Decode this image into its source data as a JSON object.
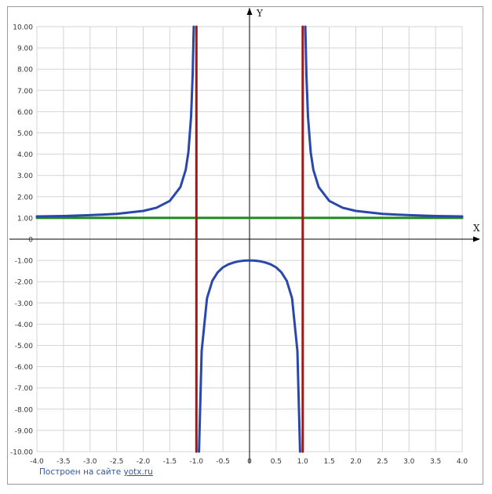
{
  "chart_data": {
    "type": "line",
    "xlabel": "X",
    "ylabel": "Y",
    "xlim": [
      -4,
      4
    ],
    "ylim": [
      -10,
      10
    ],
    "x_ticks": [
      "-4.0",
      "-3.5",
      "-3.0",
      "-2.5",
      "-2.0",
      "-1.5",
      "-1.0",
      "-0.5",
      "0",
      "0.5",
      "1.0",
      "1.5",
      "2.0",
      "2.5",
      "3.0",
      "3.5",
      "4.0"
    ],
    "y_ticks": [
      "-10.00",
      "-9.00",
      "-8.00",
      "-7.00",
      "-6.00",
      "-5.00",
      "-4.00",
      "-3.00",
      "-2.00",
      "-1.00",
      "0",
      "1.00",
      "2.00",
      "3.00",
      "4.00",
      "5.00",
      "6.00",
      "7.00",
      "8.00",
      "9.00",
      "10.00"
    ],
    "grid": true,
    "series": [
      {
        "color": "#2a48ac",
        "branches": [
          {
            "x": [
              -4.0,
              -3.5,
              -3.0,
              -2.5,
              -2.0,
              -1.75,
              -1.5,
              -1.3,
              -1.2,
              -1.15,
              -1.1,
              -1.07,
              -1.05
            ],
            "y": [
              1.07,
              1.09,
              1.13,
              1.19,
              1.33,
              1.48,
              1.8,
              2.45,
              3.27,
              4.1,
              5.76,
              7.71,
              10.0
            ]
          },
          {
            "x": [
              -0.95,
              -0.9,
              -0.8,
              -0.7,
              -0.6,
              -0.5,
              -0.4,
              -0.3,
              -0.2,
              -0.1,
              0.0,
              0.1,
              0.2,
              0.3,
              0.4,
              0.5,
              0.6,
              0.7,
              0.8,
              0.9,
              0.95
            ],
            "y": [
              -10.0,
              -5.26,
              -2.78,
              -1.96,
              -1.56,
              -1.33,
              -1.19,
              -1.1,
              -1.04,
              -1.01,
              -1.0,
              -1.01,
              -1.04,
              -1.1,
              -1.19,
              -1.33,
              -1.56,
              -1.96,
              -2.78,
              -5.26,
              -10.0
            ]
          },
          {
            "x": [
              1.05,
              1.07,
              1.1,
              1.15,
              1.2,
              1.3,
              1.5,
              1.75,
              2.0,
              2.5,
              3.0,
              3.5,
              4.0
            ],
            "y": [
              10.0,
              7.71,
              5.76,
              4.1,
              3.27,
              2.45,
              1.8,
              1.48,
              1.33,
              1.19,
              1.13,
              1.09,
              1.07
            ]
          }
        ]
      },
      {
        "color": "#1e8a1e",
        "x": [
          -4,
          4
        ],
        "y": [
          1,
          1
        ]
      },
      {
        "color": "#a01818",
        "x": [
          -1,
          -1
        ],
        "y": [
          -10,
          10
        ]
      },
      {
        "color": "#a01818",
        "x": [
          1,
          1
        ],
        "y": [
          -10,
          10
        ]
      }
    ]
  },
  "footer": {
    "credit_text": "Построен на сайте ",
    "credit_link": "yotx.ru"
  }
}
